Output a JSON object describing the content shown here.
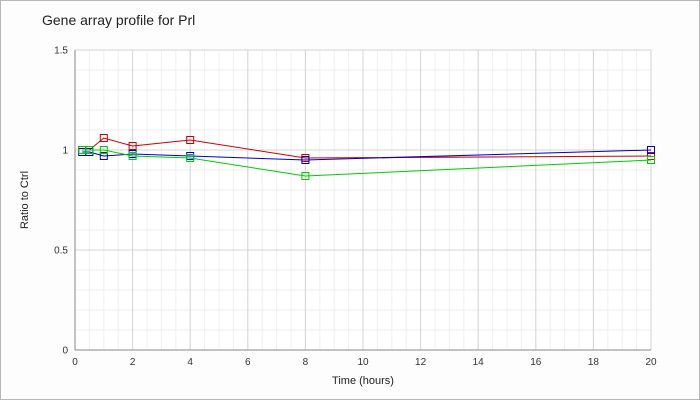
{
  "chart_data": {
    "type": "line",
    "title": "Gene array profile for Prl",
    "xlabel": "Time (hours)",
    "ylabel": "Ratio to Ctrl",
    "xlim": [
      0,
      20
    ],
    "ylim": [
      0,
      1.5
    ],
    "x_ticks": [
      0,
      2,
      4,
      6,
      8,
      10,
      12,
      14,
      16,
      18,
      20
    ],
    "x_tick_labels": [
      "0",
      "2",
      "4",
      "6",
      "8",
      "10",
      "12",
      "14",
      "16",
      "18",
      "20"
    ],
    "y_ticks": [
      0,
      0.5,
      1,
      1.5
    ],
    "y_tick_labels": [
      "0",
      "0.5",
      "1",
      "1.5"
    ],
    "grid": true,
    "legend": "none",
    "marker": "square",
    "series": [
      {
        "color": "#cc0000",
        "points": [
          [
            0.25,
            1.0
          ],
          [
            0.5,
            1.0
          ],
          [
            1,
            1.06
          ],
          [
            2,
            1.02
          ],
          [
            4,
            1.05
          ],
          [
            8,
            0.96
          ],
          [
            20,
            0.97
          ]
        ]
      },
      {
        "color": "#0000cc",
        "points": [
          [
            0.25,
            0.99
          ],
          [
            0.5,
            0.99
          ],
          [
            1,
            0.97
          ],
          [
            2,
            0.98
          ],
          [
            4,
            0.97
          ],
          [
            8,
            0.95
          ],
          [
            20,
            1.0
          ]
        ]
      },
      {
        "color": "#00cc00",
        "points": [
          [
            0.25,
            1.0
          ],
          [
            0.5,
            1.0
          ],
          [
            1,
            1.0
          ],
          [
            2,
            0.97
          ],
          [
            4,
            0.96
          ],
          [
            8,
            0.87
          ],
          [
            20,
            0.95
          ]
        ]
      }
    ]
  }
}
